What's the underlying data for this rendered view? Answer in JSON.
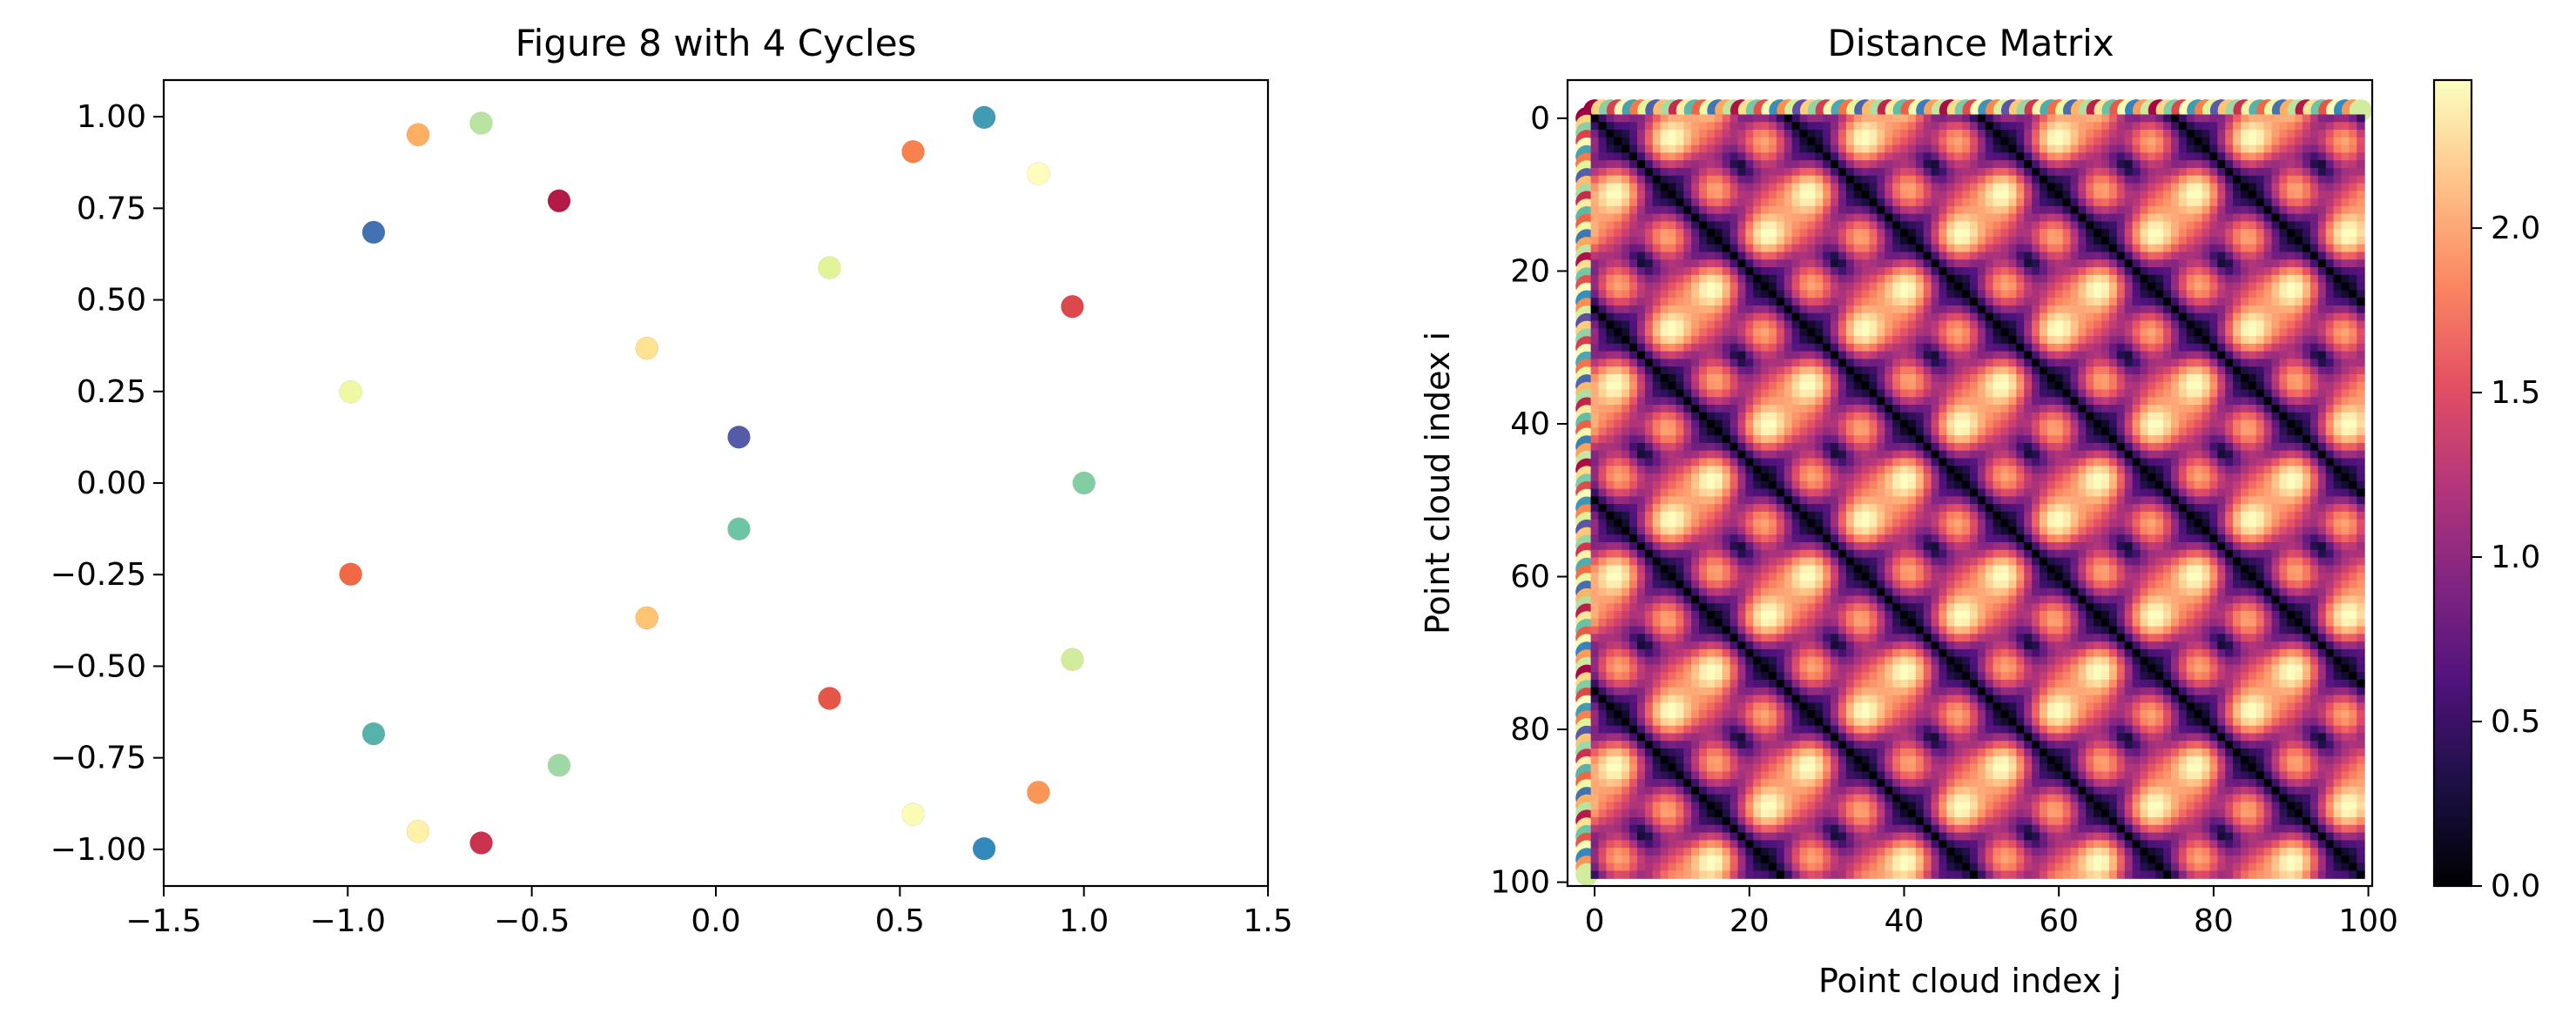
{
  "chart_data": [
    {
      "type": "scatter",
      "title": "Figure 8 with 4 Cycles",
      "xlabel": "",
      "ylabel": "",
      "xlim": [
        -1.5,
        1.5
      ],
      "ylim": [
        -1.1,
        1.1
      ],
      "xticks": [
        "−1.5",
        "−1.0",
        "−0.5",
        "0.0",
        "0.5",
        "1.0",
        "1.5"
      ],
      "xtick_values": [
        -1.5,
        -1.0,
        -0.5,
        0.0,
        0.5,
        1.0,
        1.5
      ],
      "yticks": [
        "−1.00",
        "−0.75",
        "−0.50",
        "−0.25",
        "0.00",
        "0.25",
        "0.50",
        "0.75",
        "1.00"
      ],
      "ytick_values": [
        -1.0,
        -0.75,
        -0.5,
        -0.25,
        0.0,
        0.25,
        0.5,
        0.75,
        1.0
      ],
      "grid": false,
      "legend": null,
      "n_points": 100,
      "n_cycles": 4,
      "curve": "x = cos(t), y = sin(2t)",
      "colormap": "Spectral"
    },
    {
      "type": "heatmap",
      "title": "Distance Matrix",
      "xlabel": "Point cloud index j",
      "ylabel": "Point cloud index i",
      "xticks": [
        "0",
        "20",
        "40",
        "60",
        "80",
        "100"
      ],
      "xtick_values": [
        0,
        20,
        40,
        60,
        80,
        100
      ],
      "yticks": [
        "0",
        "20",
        "40",
        "60",
        "80",
        "100"
      ],
      "ytick_values": [
        0,
        20,
        40,
        60,
        80,
        100
      ],
      "matrix_size": 100,
      "vmin": 0.0,
      "vmax": 2.45,
      "colormap": "magma",
      "colorbar_ticks": [
        "0.0",
        "0.5",
        "1.0",
        "1.5",
        "2.0"
      ],
      "colorbar_tick_values": [
        0.0,
        0.5,
        1.0,
        1.5,
        2.0
      ],
      "edge_marker_colormap": "Spectral"
    }
  ]
}
